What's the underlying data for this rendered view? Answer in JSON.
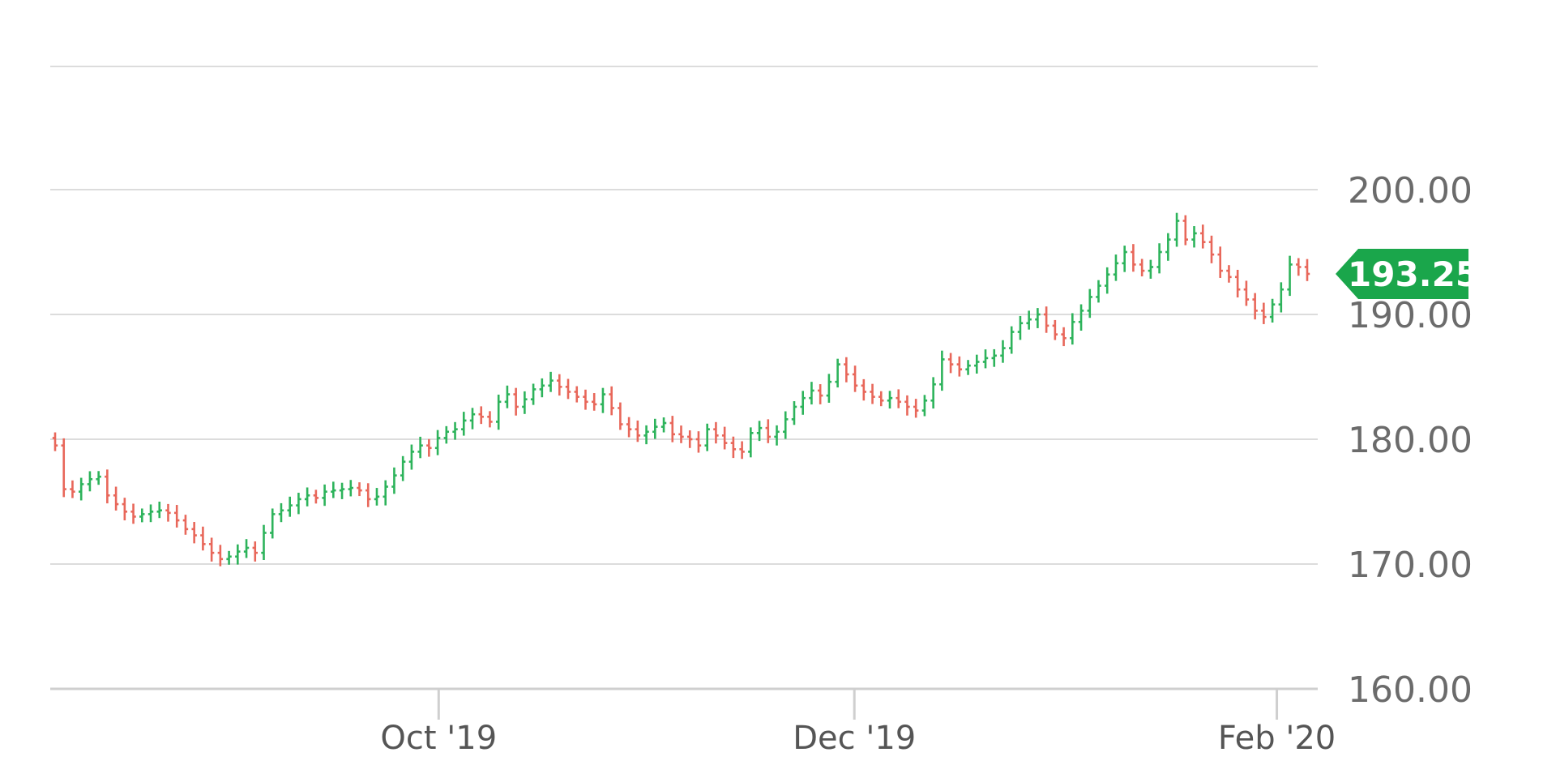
{
  "chart_data": {
    "type": "ohlc",
    "y_axis": {
      "ticks": [
        160,
        170,
        180,
        190,
        200
      ],
      "tick_labels": [
        "160.00",
        "170.00",
        "180.00",
        "190.00",
        "200.00"
      ],
      "ylim": [
        160,
        210
      ],
      "position": "right"
    },
    "x_axis": {
      "tick_labels": [
        {
          "label": "Oct '19",
          "date": "2019-10-01"
        },
        {
          "label": "Dec '19",
          "date": "2019-12-01"
        },
        {
          "label": "Feb '20",
          "date": "2020-02-01"
        }
      ],
      "xlim": [
        "2019-08-05",
        "2020-02-07"
      ]
    },
    "grid": true,
    "last_price": {
      "value": 193.25,
      "label": "193.25",
      "color": "#1aa64b"
    },
    "colors": {
      "up": "#2db35b",
      "down": "#e8675a"
    },
    "closes": [
      179.5,
      176.0,
      175.8,
      176.4,
      176.8,
      177.0,
      175.5,
      174.8,
      174.2,
      173.8,
      174.0,
      174.2,
      174.3,
      174.1,
      173.5,
      172.8,
      172.3,
      171.6,
      170.9,
      170.4,
      170.6,
      171.0,
      171.3,
      170.9,
      172.5,
      174.0,
      174.3,
      174.7,
      175.2,
      175.5,
      175.3,
      175.8,
      175.9,
      176.0,
      176.1,
      175.9,
      175.2,
      175.4,
      176.2,
      177.1,
      178.2,
      179.0,
      179.5,
      179.3,
      180.1,
      180.6,
      180.8,
      181.5,
      182.0,
      181.8,
      181.4,
      183.0,
      183.6,
      182.6,
      183.2,
      184.0,
      184.3,
      184.7,
      184.2,
      183.8,
      183.4,
      183.0,
      182.8,
      183.6,
      182.5,
      181.2,
      180.8,
      180.3,
      180.6,
      181.0,
      181.3,
      180.4,
      180.2,
      180.0,
      179.5,
      180.8,
      180.3,
      179.7,
      179.2,
      179.0,
      180.5,
      180.9,
      180.2,
      180.6,
      181.6,
      182.6,
      183.3,
      183.9,
      183.5,
      184.6,
      186.0,
      185.2,
      184.3,
      183.8,
      183.4,
      183.1,
      183.3,
      183.0,
      182.6,
      182.3,
      183.1,
      184.4,
      186.4,
      186.0,
      185.6,
      185.9,
      186.2,
      186.5,
      186.7,
      187.3,
      188.6,
      189.3,
      189.6,
      190.0,
      189.1,
      188.4,
      188.1,
      189.4,
      190.3,
      191.4,
      192.3,
      193.2,
      194.1,
      195.0,
      194.0,
      193.5,
      193.8,
      195.0,
      196.0,
      197.5,
      196.0,
      196.5,
      195.8,
      194.8,
      193.5,
      193.0,
      192.0,
      191.2,
      190.3,
      189.8,
      190.8,
      192.0,
      194.0,
      193.8,
      193.25
    ]
  }
}
